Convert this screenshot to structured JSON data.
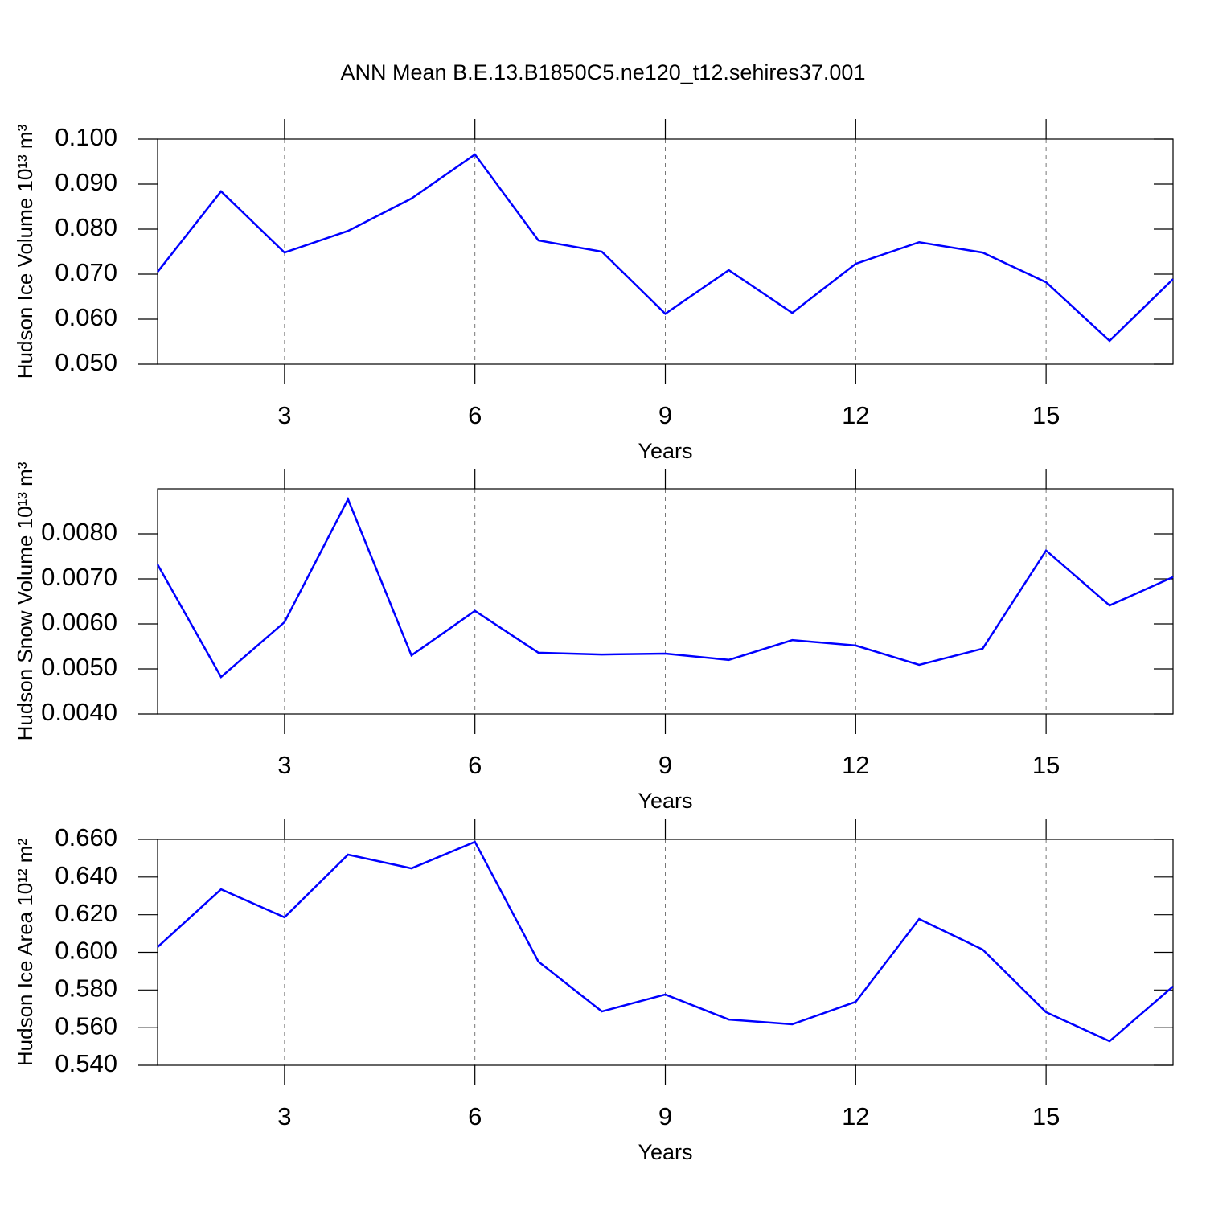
{
  "chart_data": [
    {
      "type": "line",
      "title": "ANN Mean B.E.13.B1850C5.ne120_t12.sehires37.001",
      "xlabel": "Years",
      "ylabel": "Hudson Ice Volume 10¹³ m³",
      "x": [
        1,
        2,
        3,
        4,
        5,
        6,
        7,
        8,
        9,
        10,
        11,
        12,
        13,
        14,
        15,
        16,
        17
      ],
      "series": [
        {
          "color": "#0000ff",
          "values": [
            0.0705,
            0.0884,
            0.0748,
            0.0796,
            0.0868,
            0.0966,
            0.0775,
            0.075,
            0.0612,
            0.0709,
            0.0614,
            0.0723,
            0.0771,
            0.0748,
            0.0682,
            0.0552,
            0.0689
          ]
        }
      ],
      "xlim": [
        1,
        17
      ],
      "xticks": [
        3,
        6,
        9,
        12,
        15
      ],
      "ylim": [
        0.05,
        0.1
      ],
      "yticks": [
        {
          "value": 0.05,
          "label": "0.050"
        },
        {
          "value": 0.06,
          "label": "0.060"
        },
        {
          "value": 0.07,
          "label": "0.070"
        },
        {
          "value": 0.08,
          "label": "0.080"
        },
        {
          "value": 0.09,
          "label": "0.090"
        },
        {
          "value": 0.1,
          "label": "0.100"
        }
      ],
      "xgrid": true
    },
    {
      "type": "line",
      "xlabel": "Years",
      "ylabel": "Hudson Snow Volume 10¹³ m³",
      "x": [
        1,
        2,
        3,
        4,
        5,
        6,
        7,
        8,
        9,
        10,
        11,
        12,
        13,
        14,
        15,
        16,
        17
      ],
      "series": [
        {
          "color": "#0000ff",
          "values": [
            0.00732,
            0.00482,
            0.00604,
            0.00877,
            0.0053,
            0.00629,
            0.00536,
            0.00532,
            0.00534,
            0.0052,
            0.00564,
            0.00552,
            0.00509,
            0.00545,
            0.00763,
            0.00641,
            0.00704
          ]
        }
      ],
      "xlim": [
        1,
        17
      ],
      "xticks": [
        3,
        6,
        9,
        12,
        15
      ],
      "ylim": [
        0.004,
        0.009
      ],
      "yticks": [
        {
          "value": 0.004,
          "label": "0.0040"
        },
        {
          "value": 0.005,
          "label": "0.0050"
        },
        {
          "value": 0.006,
          "label": "0.0060"
        },
        {
          "value": 0.007,
          "label": "0.0070"
        },
        {
          "value": 0.008,
          "label": "0.0080"
        }
      ],
      "xgrid": true
    },
    {
      "type": "line",
      "xlabel": "Years",
      "ylabel": "Hudson Ice Area 10¹² m²",
      "x": [
        1,
        2,
        3,
        4,
        5,
        6,
        7,
        8,
        9,
        10,
        11,
        12,
        13,
        14,
        15,
        16,
        17
      ],
      "series": [
        {
          "color": "#0000ff",
          "values": [
            0.6028,
            0.6335,
            0.6186,
            0.6519,
            0.6446,
            0.6587,
            0.5951,
            0.5686,
            0.5776,
            0.5643,
            0.5618,
            0.5737,
            0.6177,
            0.6015,
            0.5682,
            0.5528,
            0.5819
          ]
        }
      ],
      "xlim": [
        1,
        17
      ],
      "xticks": [
        3,
        6,
        9,
        12,
        15
      ],
      "ylim": [
        0.54,
        0.66
      ],
      "yticks": [
        {
          "value": 0.54,
          "label": "0.540"
        },
        {
          "value": 0.56,
          "label": "0.560"
        },
        {
          "value": 0.58,
          "label": "0.580"
        },
        {
          "value": 0.6,
          "label": "0.600"
        },
        {
          "value": 0.62,
          "label": "0.620"
        },
        {
          "value": 0.64,
          "label": "0.640"
        },
        {
          "value": 0.66,
          "label": "0.660"
        }
      ],
      "xgrid": true
    }
  ]
}
